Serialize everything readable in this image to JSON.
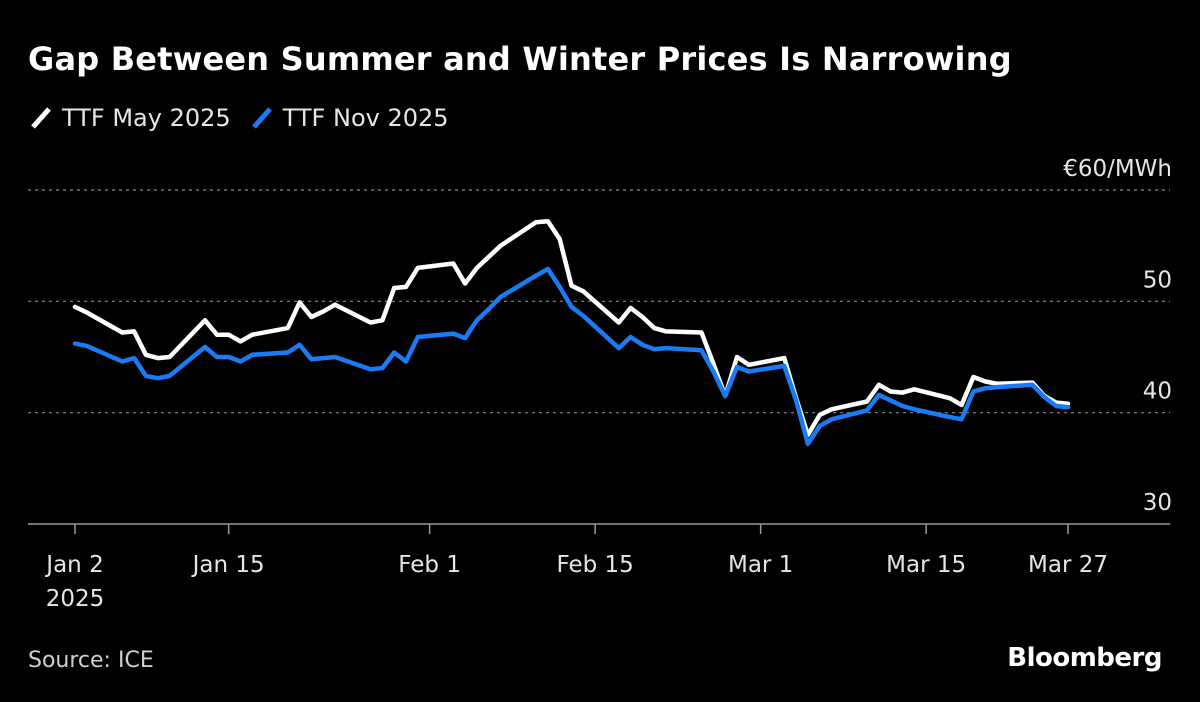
{
  "header": {
    "title": "Gap Between Summer and Winter Prices Is Narrowing"
  },
  "footer": {
    "source": "Source: ICE",
    "brand": "Bloomberg"
  },
  "colors": {
    "background": "#000000",
    "may": "#ffffff",
    "nov": "#1a7cf4",
    "grid": "#8a8a8a"
  },
  "chart_data": {
    "type": "line",
    "title": "Gap Between Summer and Winter Prices Is Narrowing",
    "ylabel": "",
    "y_unit_label": "€60/MWh",
    "ylim": [
      28,
      60
    ],
    "yticks": [
      60,
      50,
      40,
      30
    ],
    "ytick_labels": [
      "€60/MWh",
      "50",
      "40",
      "30"
    ],
    "grid": "horizontal dotted",
    "legend_position": "top-left",
    "xticks": [
      {
        "date": "2025-01-02",
        "label": "Jan 2",
        "sublabel": "2025"
      },
      {
        "date": "2025-01-15",
        "label": "Jan 15"
      },
      {
        "date": "2025-02-01",
        "label": "Feb 1"
      },
      {
        "date": "2025-02-15",
        "label": "Feb 15"
      },
      {
        "date": "2025-03-01",
        "label": "Mar 1"
      },
      {
        "date": "2025-03-15",
        "label": "Mar 15"
      },
      {
        "date": "2025-03-27",
        "label": "Mar 27"
      }
    ],
    "x": [
      "2025-01-02",
      "2025-01-03",
      "2025-01-06",
      "2025-01-07",
      "2025-01-08",
      "2025-01-09",
      "2025-01-10",
      "2025-01-13",
      "2025-01-14",
      "2025-01-15",
      "2025-01-16",
      "2025-01-17",
      "2025-01-20",
      "2025-01-21",
      "2025-01-22",
      "2025-01-23",
      "2025-01-24",
      "2025-01-27",
      "2025-01-28",
      "2025-01-29",
      "2025-01-30",
      "2025-01-31",
      "2025-02-03",
      "2025-02-04",
      "2025-02-05",
      "2025-02-06",
      "2025-02-07",
      "2025-02-10",
      "2025-02-11",
      "2025-02-12",
      "2025-02-13",
      "2025-02-14",
      "2025-02-17",
      "2025-02-18",
      "2025-02-19",
      "2025-02-20",
      "2025-02-21",
      "2025-02-24",
      "2025-02-25",
      "2025-02-26",
      "2025-02-27",
      "2025-02-28",
      "2025-03-03",
      "2025-03-04",
      "2025-03-05",
      "2025-03-06",
      "2025-03-07",
      "2025-03-10",
      "2025-03-11",
      "2025-03-12",
      "2025-03-13",
      "2025-03-14",
      "2025-03-17",
      "2025-03-18",
      "2025-03-19",
      "2025-03-20",
      "2025-03-21",
      "2025-03-24",
      "2025-03-25",
      "2025-03-26",
      "2025-03-27"
    ],
    "series": [
      {
        "name": "TTF May 2025",
        "color": "#ffffff",
        "values": [
          49.5,
          49.0,
          47.2,
          47.3,
          45.2,
          44.9,
          45.0,
          48.3,
          47.0,
          47.0,
          46.4,
          47.0,
          47.6,
          49.9,
          48.6,
          49.1,
          49.7,
          48.1,
          48.3,
          51.2,
          51.3,
          53.0,
          53.4,
          51.6,
          53.0,
          54.0,
          55.0,
          57.1,
          57.2,
          55.6,
          51.4,
          50.9,
          48.1,
          49.4,
          48.6,
          47.6,
          47.3,
          47.2,
          44.4,
          41.5,
          45.0,
          44.3,
          44.9,
          41.3,
          38.0,
          39.8,
          40.3,
          41.0,
          42.5,
          41.9,
          41.8,
          42.1,
          41.3,
          40.7,
          43.2,
          42.8,
          42.6,
          42.7,
          41.5,
          40.9,
          40.8
        ]
      },
      {
        "name": "TTF Nov 2025",
        "color": "#1a7cf4",
        "values": [
          46.2,
          46.0,
          44.6,
          44.9,
          43.3,
          43.1,
          43.3,
          45.9,
          45.0,
          45.0,
          44.6,
          45.2,
          45.4,
          46.1,
          44.8,
          44.9,
          45.0,
          43.9,
          44.0,
          45.4,
          44.6,
          46.8,
          47.1,
          46.7,
          48.3,
          49.3,
          50.4,
          52.3,
          52.9,
          51.3,
          49.5,
          48.7,
          45.8,
          46.8,
          46.1,
          45.7,
          45.8,
          45.6,
          43.7,
          41.5,
          44.1,
          43.7,
          44.2,
          41.1,
          37.2,
          38.8,
          39.4,
          40.2,
          41.6,
          41.1,
          40.6,
          40.3,
          39.6,
          39.4,
          41.9,
          42.2,
          42.3,
          42.5,
          41.4,
          40.6,
          40.5
        ]
      }
    ]
  }
}
